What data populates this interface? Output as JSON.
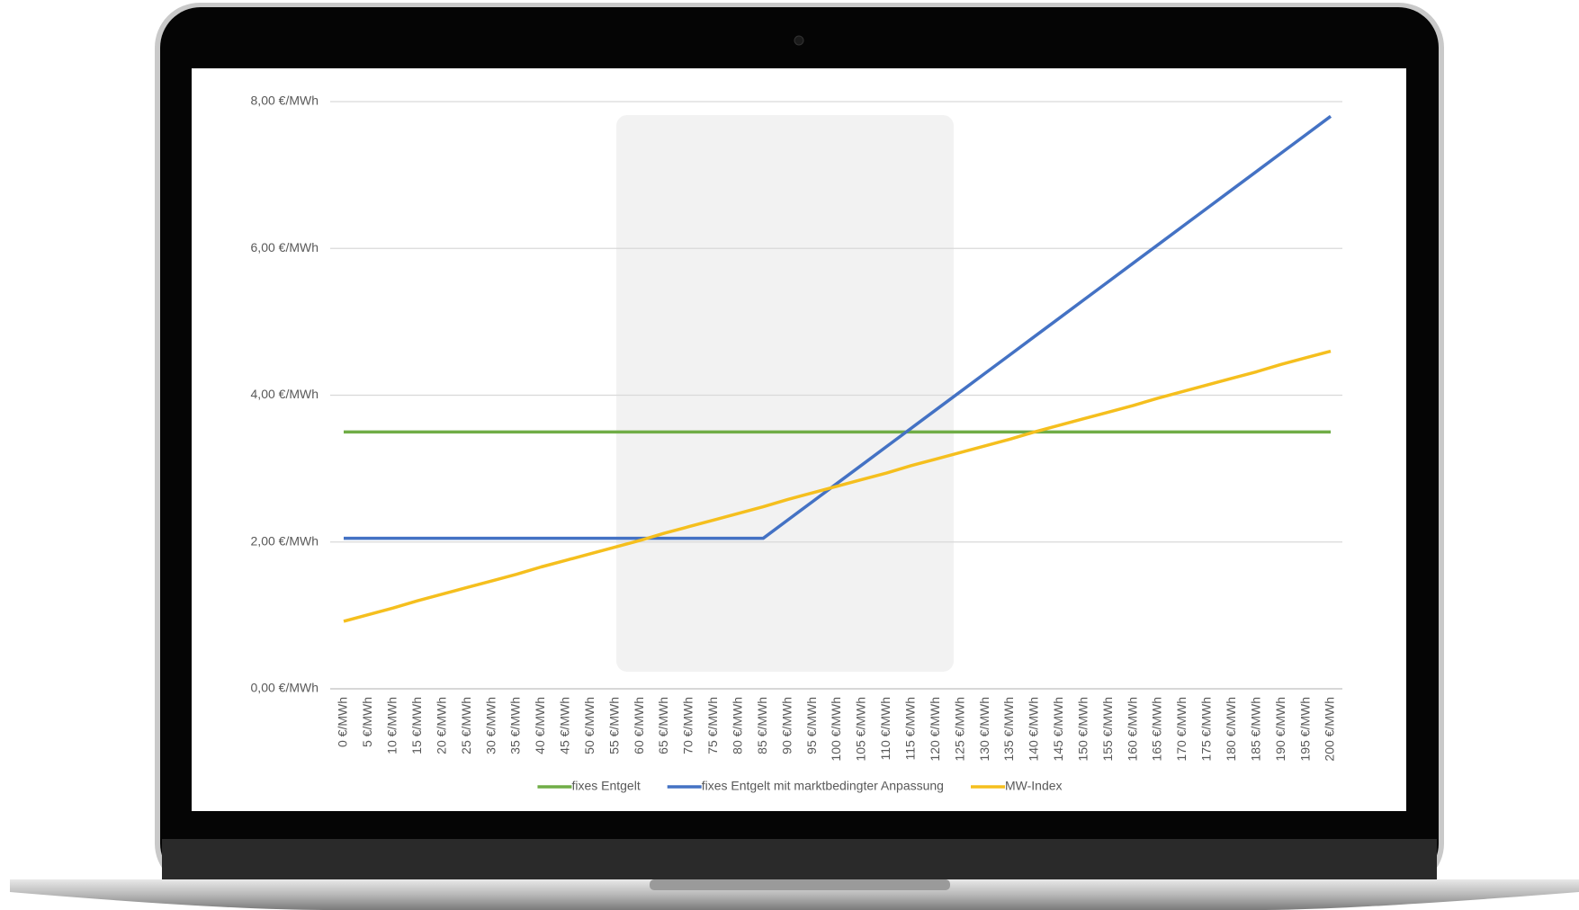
{
  "chart_data": {
    "type": "line",
    "categories": [
      "0 €/MWh",
      "5 €/MWh",
      "10 €/MWh",
      "15 €/MWh",
      "20 €/MWh",
      "25 €/MWh",
      "30 €/MWh",
      "35 €/MWh",
      "40 €/MWh",
      "45 €/MWh",
      "50 €/MWh",
      "55 €/MWh",
      "60 €/MWh",
      "65 €/MWh",
      "70 €/MWh",
      "75 €/MWh",
      "80 €/MWh",
      "85 €/MWh",
      "90 €/MWh",
      "95 €/MWh",
      "100 €/MWh",
      "105 €/MWh",
      "110 €/MWh",
      "115 €/MWh",
      "120 €/MWh",
      "125 €/MWh",
      "130 €/MWh",
      "135 €/MWh",
      "140 €/MWh",
      "145 €/MWh",
      "150 €/MWh",
      "155 €/MWh",
      "160 €/MWh",
      "165 €/MWh",
      "170 €/MWh",
      "175 €/MWh",
      "180 €/MWh",
      "185 €/MWh",
      "190 €/MWh",
      "195 €/MWh",
      "200 €/MWh"
    ],
    "series": [
      {
        "name": "fixes Entgelt",
        "color": "#70ad47",
        "values": [
          3.5,
          3.5,
          3.5,
          3.5,
          3.5,
          3.5,
          3.5,
          3.5,
          3.5,
          3.5,
          3.5,
          3.5,
          3.5,
          3.5,
          3.5,
          3.5,
          3.5,
          3.5,
          3.5,
          3.5,
          3.5,
          3.5,
          3.5,
          3.5,
          3.5,
          3.5,
          3.5,
          3.5,
          3.5,
          3.5,
          3.5,
          3.5,
          3.5,
          3.5,
          3.5,
          3.5,
          3.5,
          3.5,
          3.5,
          3.5,
          3.5
        ]
      },
      {
        "name": "fixes Entgelt mit marktbedingter Anpassung",
        "color": "#4472c4",
        "values": [
          2.05,
          2.05,
          2.05,
          2.05,
          2.05,
          2.05,
          2.05,
          2.05,
          2.05,
          2.05,
          2.05,
          2.05,
          2.05,
          2.05,
          2.05,
          2.05,
          2.05,
          2.05,
          2.3,
          2.55,
          2.8,
          3.05,
          3.3,
          3.55,
          3.8,
          4.05,
          4.3,
          4.55,
          4.8,
          5.05,
          5.3,
          5.55,
          5.8,
          6.05,
          6.3,
          6.55,
          6.8,
          7.05,
          7.3,
          7.55,
          7.8
        ]
      },
      {
        "name": "MW-Index",
        "color": "#f5bf1e",
        "values": [
          0.92,
          1.01,
          1.1,
          1.2,
          1.29,
          1.38,
          1.47,
          1.56,
          1.66,
          1.75,
          1.84,
          1.93,
          2.02,
          2.12,
          2.21,
          2.3,
          2.39,
          2.48,
          2.58,
          2.67,
          2.76,
          2.85,
          2.94,
          3.04,
          3.13,
          3.22,
          3.31,
          3.4,
          3.5,
          3.59,
          3.68,
          3.77,
          3.86,
          3.96,
          4.05,
          4.14,
          4.23,
          4.32,
          4.42,
          4.51,
          4.6
        ]
      }
    ],
    "ylim": [
      0,
      8
    ],
    "yticks": [
      {
        "value": 0,
        "label": "0,00 €/MWh"
      },
      {
        "value": 2,
        "label": "2,00 €/MWh"
      },
      {
        "value": 4,
        "label": "4,00 €/MWh"
      },
      {
        "value": 6,
        "label": "6,00 €/MWh"
      },
      {
        "value": 8,
        "label": "8,00 €/MWh"
      }
    ],
    "grid": true,
    "legend": "bottom"
  }
}
